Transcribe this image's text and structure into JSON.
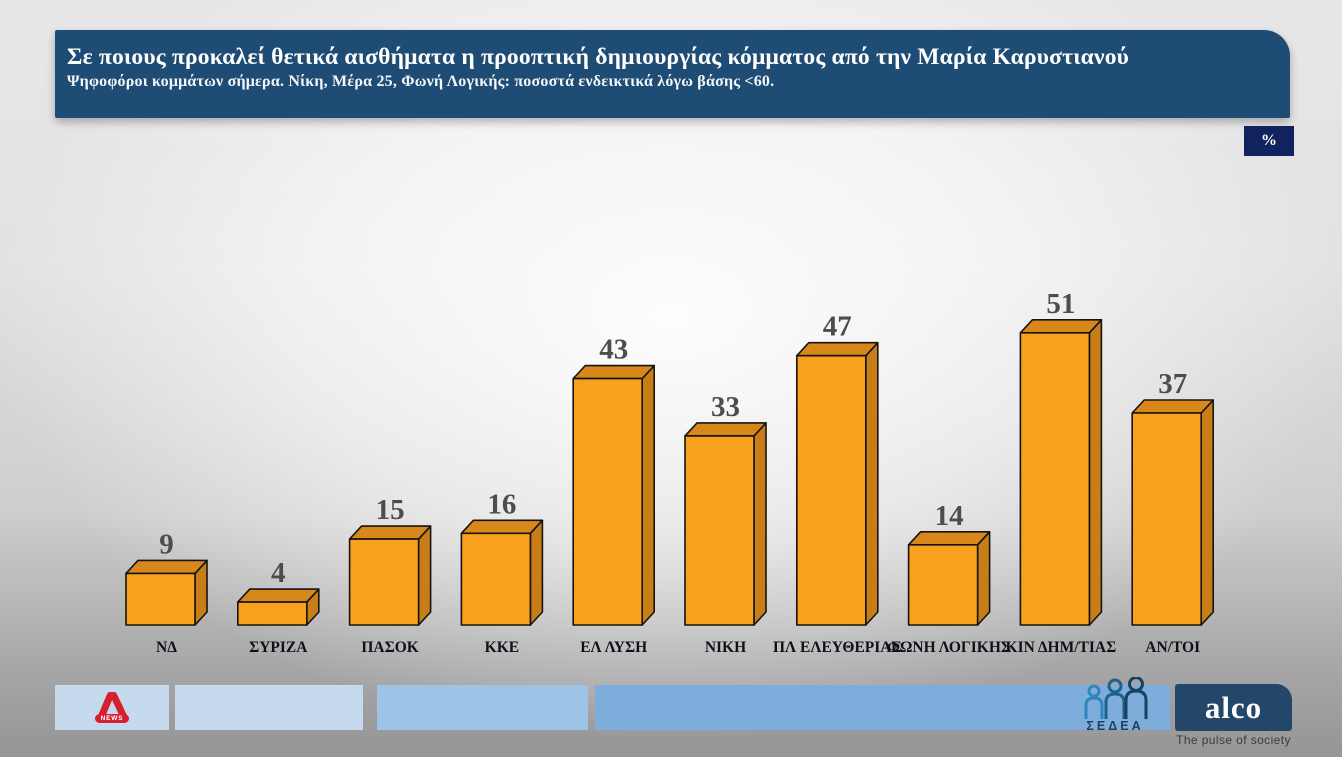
{
  "chart_data": {
    "type": "bar",
    "style": "3d-bar",
    "title": "Σε ποιους προκαλεί θετικά αισθήματα η προοπτική δημιουργίας κόμματος από την Μαρία Καρυστιανού",
    "subtitle": "Ψηφοφόροι κομμάτων σήμερα. Νίκη, Μέρα 25, Φωνή Λογικής: ποσοστά ενδεικτικά λόγω βάσης <60.",
    "unit": "%",
    "categories": [
      "ΝΔ",
      "ΣΥΡΙΖΑ",
      "ΠΑΣΟΚ",
      "ΚΚΕ",
      "ΕΛ ΛΥΣΗ",
      "ΝΙΚΗ",
      "ΠΛ ΕΛΕΥΘΕΡΙΑΣ",
      "ΦΩΝΗ ΛΟΓΙΚΗΣ",
      "ΚΙΝ ΔΗΜ/ΤΙΑΣ",
      "ΑΝ/ΤΟΙ"
    ],
    "values": [
      9,
      4,
      15,
      16,
      43,
      33,
      47,
      14,
      51,
      37
    ],
    "xlabel": "",
    "ylabel": "",
    "ylim": [
      0,
      60
    ],
    "grid": false,
    "legend": null,
    "colors": {
      "bar_front": "#F9A01C",
      "bar_top": "#D8881B",
      "bar_side": "#C87D16",
      "outline": "#141414",
      "value_label": "#4d4d4d",
      "category_label": "#10101a"
    }
  },
  "header_colors": {
    "bar_bg": "#1E4C74",
    "badge_bg": "#11235F"
  },
  "footer": {
    "alpha_news_label": "NEWS",
    "sedea_label": "ΣΕΔΕΑ",
    "alco_logo_text": "alco",
    "alco_tagline": "The pulse of society",
    "panel_colors": {
      "light": "#C6DAEE",
      "medium": "#9DC3E6",
      "dark": "#7FADDB",
      "alco_bg": "#234769",
      "alpha_red": "#D6202F"
    }
  }
}
